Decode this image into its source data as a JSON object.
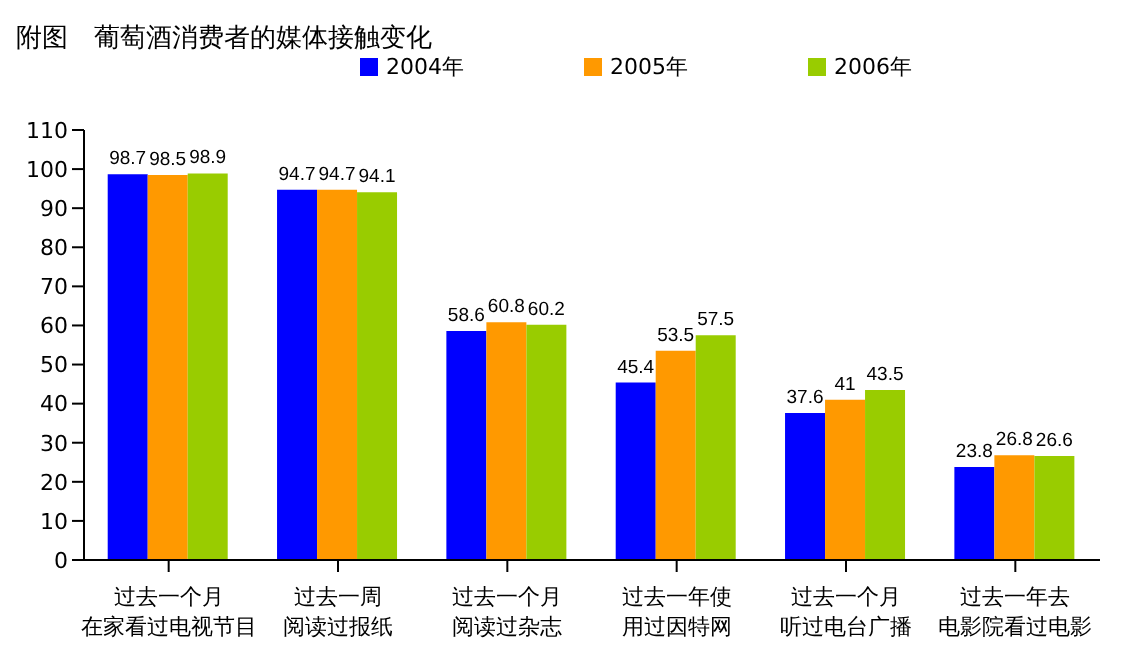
{
  "chart_data": {
    "type": "bar",
    "title": "附图　葡萄酒消费者的媒体接触变化",
    "categories": [
      "过去一个月在家看过电视节目",
      "过去一周阅读过报纸",
      "过去一个月阅读过杂志",
      "过去一年使用过因特网",
      "过去一个月听过电台广播",
      "过去一年去电影院看过电影"
    ],
    "series": [
      {
        "name": "2004年",
        "color": "#0000ff",
        "values": [
          98.7,
          94.7,
          58.6,
          45.4,
          37.6,
          23.8
        ]
      },
      {
        "name": "2005年",
        "color": "#ff9900",
        "values": [
          98.5,
          94.7,
          60.8,
          53.5,
          41,
          26.8
        ]
      },
      {
        "name": "2006年",
        "color": "#99cc00",
        "values": [
          98.9,
          94.1,
          60.2,
          57.5,
          43.5,
          26.6
        ]
      }
    ],
    "ylim": [
      0,
      110
    ],
    "yticks": [
      0,
      10,
      20,
      30,
      40,
      50,
      60,
      70,
      80,
      90,
      100,
      110
    ],
    "grid": false,
    "legend": "top",
    "data_labels": true
  }
}
